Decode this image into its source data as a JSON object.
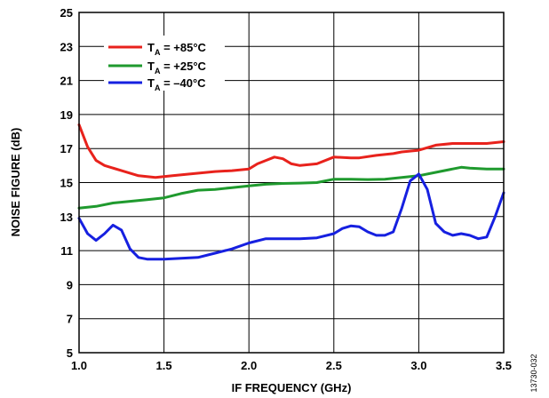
{
  "chart_data": {
    "type": "line",
    "xlabel": "IF FREQUENCY (GHz)",
    "ylabel": "NOISE FIGURE (dB)",
    "xlim": [
      1.0,
      3.5
    ],
    "ylim": [
      5,
      25
    ],
    "x_ticks": [
      "1.0",
      "1.5",
      "2.0",
      "2.5",
      "3.0",
      "3.5"
    ],
    "x_tick_values": [
      1.0,
      1.5,
      2.0,
      2.5,
      3.0,
      3.5
    ],
    "y_ticks": [
      "5",
      "7",
      "9",
      "11",
      "13",
      "15",
      "17",
      "19",
      "21",
      "23",
      "25"
    ],
    "y_tick_values": [
      5,
      7,
      9,
      11,
      13,
      15,
      17,
      19,
      21,
      23,
      25
    ],
    "grid": true,
    "legend_position": "top-left",
    "figure_id": "13730-032",
    "series": [
      {
        "name_main": "T",
        "name_sub": "A",
        "name_rest": " = +85°C",
        "color": "#e8221c",
        "x": [
          1.0,
          1.05,
          1.1,
          1.15,
          1.25,
          1.35,
          1.45,
          1.55,
          1.65,
          1.8,
          1.9,
          2.0,
          2.05,
          2.1,
          2.15,
          2.2,
          2.25,
          2.3,
          2.4,
          2.5,
          2.6,
          2.65,
          2.75,
          2.85,
          2.9,
          3.0,
          3.1,
          3.2,
          3.3,
          3.4,
          3.5
        ],
        "y": [
          18.4,
          17.1,
          16.3,
          16.0,
          15.7,
          15.4,
          15.3,
          15.4,
          15.5,
          15.65,
          15.7,
          15.8,
          16.1,
          16.3,
          16.5,
          16.4,
          16.1,
          16.0,
          16.1,
          16.5,
          16.45,
          16.45,
          16.6,
          16.7,
          16.8,
          16.9,
          17.2,
          17.3,
          17.3,
          17.3,
          17.4
        ]
      },
      {
        "name_main": "T",
        "name_sub": "A",
        "name_rest": " = +25°C",
        "color": "#1f9a2e",
        "x": [
          1.0,
          1.1,
          1.2,
          1.3,
          1.4,
          1.5,
          1.6,
          1.7,
          1.8,
          1.9,
          2.0,
          2.1,
          2.2,
          2.3,
          2.4,
          2.5,
          2.6,
          2.7,
          2.8,
          2.9,
          3.0,
          3.1,
          3.2,
          3.25,
          3.3,
          3.4,
          3.5
        ],
        "y": [
          13.5,
          13.6,
          13.8,
          13.9,
          14.0,
          14.1,
          14.35,
          14.55,
          14.6,
          14.7,
          14.8,
          14.9,
          14.95,
          14.97,
          15.0,
          15.2,
          15.2,
          15.18,
          15.2,
          15.3,
          15.4,
          15.6,
          15.8,
          15.9,
          15.85,
          15.8,
          15.8
        ]
      },
      {
        "name_main": "T",
        "name_sub": "A",
        "name_rest": " = –40°C",
        "color": "#1620e0",
        "x": [
          1.0,
          1.05,
          1.1,
          1.15,
          1.2,
          1.25,
          1.3,
          1.35,
          1.4,
          1.5,
          1.6,
          1.7,
          1.8,
          1.9,
          2.0,
          2.1,
          2.2,
          2.3,
          2.4,
          2.5,
          2.55,
          2.6,
          2.65,
          2.7,
          2.75,
          2.8,
          2.85,
          2.9,
          2.95,
          3.0,
          3.05,
          3.1,
          3.15,
          3.2,
          3.25,
          3.3,
          3.35,
          3.4,
          3.45,
          3.5
        ],
        "y": [
          12.9,
          12.0,
          11.6,
          12.0,
          12.5,
          12.2,
          11.1,
          10.6,
          10.5,
          10.5,
          10.55,
          10.6,
          10.85,
          11.1,
          11.45,
          11.7,
          11.7,
          11.7,
          11.75,
          12.0,
          12.3,
          12.45,
          12.4,
          12.1,
          11.9,
          11.9,
          12.1,
          13.5,
          15.1,
          15.5,
          14.6,
          12.6,
          12.1,
          11.9,
          12.0,
          11.9,
          11.7,
          11.8,
          13.0,
          14.4
        ]
      }
    ]
  }
}
